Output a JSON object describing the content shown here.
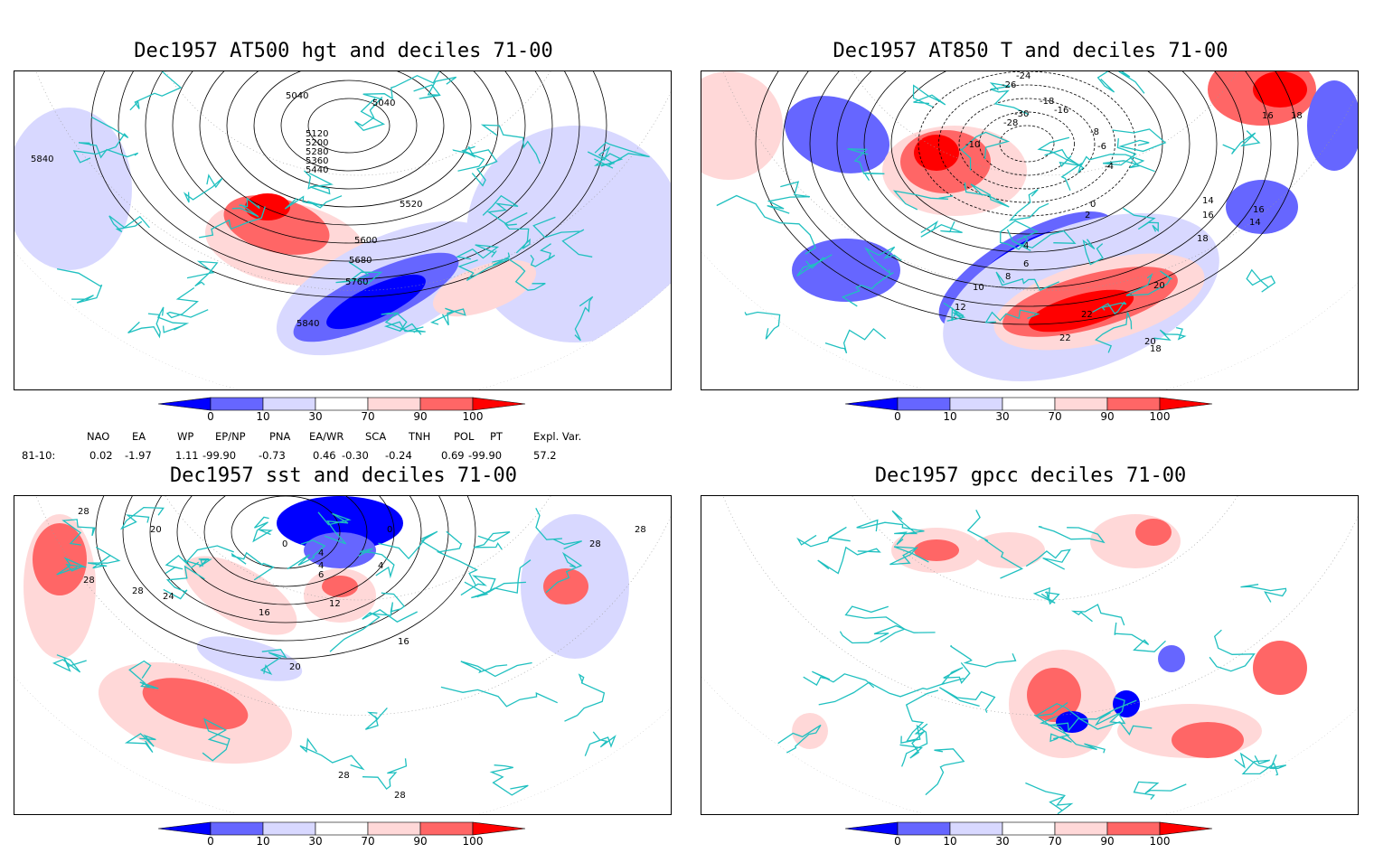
{
  "panels": [
    {
      "id": "p1",
      "title": "Dec1957 AT500 hgt and deciles 71-00",
      "contour_labels": [
        "5040",
        "5040",
        "5120",
        "5200",
        "5280",
        "5360",
        "5440",
        "5520",
        "5600",
        "5680",
        "5760",
        "5840",
        "5840"
      ]
    },
    {
      "id": "p2",
      "title": "Dec1957 AT850 T and deciles 71-00",
      "contour_labels": [
        "-24",
        "-26",
        "-18",
        "-16",
        "-30",
        "-28",
        "-10",
        "-8",
        "-6",
        "-4",
        "0",
        "2",
        "4",
        "6",
        "8",
        "10",
        "12",
        "14",
        "16",
        "18",
        "20",
        "22",
        "22",
        "20",
        "18",
        "16",
        "14",
        "18",
        "16"
      ]
    },
    {
      "id": "p3",
      "title": "Dec1957 sst and deciles 71-00",
      "contour_labels": [
        "28",
        "20",
        "28",
        "24",
        "28",
        "0",
        "0",
        "4",
        "4",
        "6",
        "4",
        "12",
        "16",
        "20",
        "16",
        "28",
        "28",
        "28",
        "28"
      ]
    },
    {
      "id": "p4",
      "title": "Dec1957 gpcc deciles 71-00",
      "contour_labels": []
    }
  ],
  "colorbar": {
    "tick_labels": [
      "0",
      "10",
      "30",
      "70",
      "90",
      "100"
    ],
    "colors": [
      "#0000ff",
      "#6666ff",
      "#d8d8ff",
      "#ffffff",
      "#ffd8d8",
      "#ff6666",
      "#ff0000"
    ]
  },
  "indices": {
    "headers": [
      "NAO",
      "EA",
      "WP",
      "EP/NP",
      "PNA",
      "EA/WR",
      "SCA",
      "TNH",
      "POL",
      "PT",
      "Expl. Var."
    ],
    "row_label": "81-10:",
    "values": [
      "0.02",
      "-1.97",
      "1.11",
      "-99.90",
      "-0.73",
      "0.46",
      "-0.30",
      "-0.24",
      "0.69",
      "-99.90",
      "57.2"
    ]
  }
}
